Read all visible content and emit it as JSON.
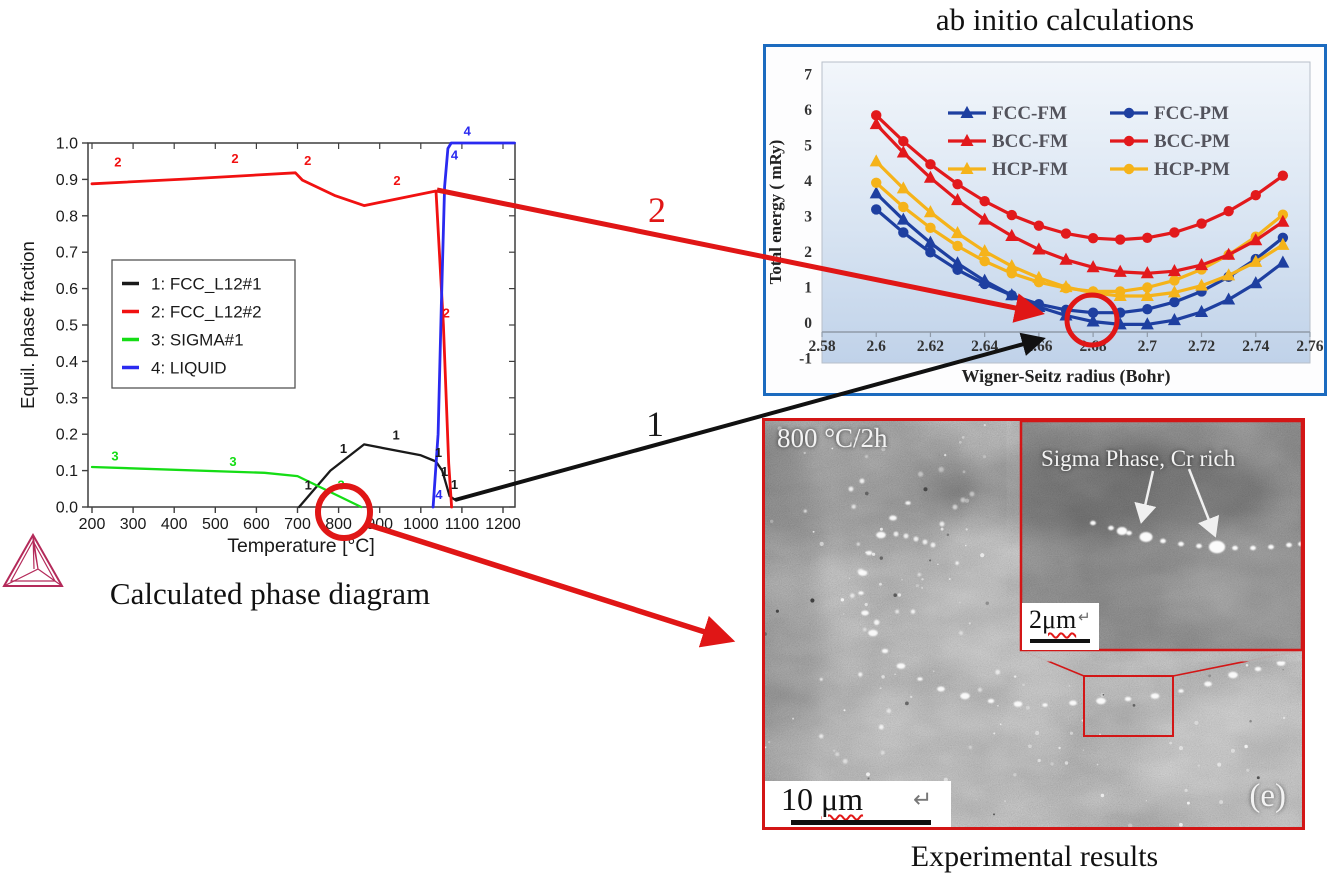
{
  "annotations": {
    "arrow1_label": "1",
    "arrow2_label": "2",
    "accent_red": "#e01616",
    "black": "#1a1a1a"
  },
  "phase_diagram": {
    "caption": "Calculated phase diagram",
    "logo_icon": "thermo-calc-tetrahedron"
  },
  "sem": {
    "caption": "Experimental results",
    "condition_label": "800 °C/2h",
    "inset_label": "Sigma Phase, Cr rich",
    "panel_label": "(e)",
    "return_symbol": "↵",
    "scalebar_main": {
      "value": "10",
      "unit": "μm"
    },
    "scalebar_inset": {
      "value": "2",
      "unit": "μm"
    },
    "border_color": "#d31616"
  },
  "chart_data": [
    {
      "id": "phase_fraction",
      "type": "line",
      "title": "Calculated phase diagram",
      "xlabel": "Temperature [°C]",
      "ylabel": "Equil. phase fraction",
      "xlim": [
        190,
        1230
      ],
      "ylim": [
        0.0,
        1.0
      ],
      "xticks": [
        200,
        300,
        400,
        500,
        600,
        700,
        800,
        900,
        1000,
        1100,
        1200
      ],
      "yticks": [
        "0.0",
        "0.1",
        "0.2",
        "0.3",
        "0.4",
        "0.5",
        "0.6",
        "0.7",
        "0.8",
        "0.9",
        "1.0"
      ],
      "grid": false,
      "legend_position": "upper-left-box",
      "series": [
        {
          "name": "1: FCC_L12#1",
          "color": "#1a1a1a",
          "w": 2.3,
          "points": [
            [
              704,
              0.0
            ],
            [
              780,
              0.1
            ],
            [
              862,
              0.172
            ],
            [
              1000,
              0.142
            ],
            [
              1037,
              0.125
            ],
            [
              1052,
              0.1
            ],
            [
              1070,
              0.03
            ],
            [
              1083,
              0.02
            ]
          ]
        },
        {
          "name": "2: FCC_L12#2",
          "color": "#f11111",
          "w": 2.8,
          "points": [
            [
              200,
              0.888
            ],
            [
              430,
              0.901
            ],
            [
              695,
              0.918
            ],
            [
              712,
              0.898
            ],
            [
              790,
              0.856
            ],
            [
              862,
              0.828
            ],
            [
              1037,
              0.868
            ],
            [
              1055,
              0.5
            ],
            [
              1068,
              0.12
            ],
            [
              1075,
              0.0
            ]
          ]
        },
        {
          "name": "3: SIGMA#1",
          "color": "#15dd15",
          "w": 2.3,
          "points": [
            [
              200,
              0.11
            ],
            [
              620,
              0.094
            ],
            [
              700,
              0.085
            ],
            [
              855,
              0.0
            ]
          ]
        },
        {
          "name": "4: LIQUID",
          "color": "#2a2af0",
          "w": 2.8,
          "points": [
            [
              1030,
              0.0
            ],
            [
              1042,
              0.2
            ],
            [
              1050,
              0.55
            ],
            [
              1058,
              0.88
            ],
            [
              1066,
              0.985
            ],
            [
              1074,
              1.0
            ],
            [
              1228,
              1.0
            ]
          ]
        }
      ],
      "curve_labels": [
        {
          "t": "2",
          "c": "#f11111",
          "x": 263,
          "y": 0.935
        },
        {
          "t": "2",
          "c": "#f11111",
          "x": 548,
          "y": 0.945
        },
        {
          "t": "2",
          "c": "#f11111",
          "x": 725,
          "y": 0.94
        },
        {
          "t": "2",
          "c": "#f11111",
          "x": 942,
          "y": 0.885
        },
        {
          "t": "2",
          "c": "#f11111",
          "x": 1062,
          "y": 0.52
        },
        {
          "t": "3",
          "c": "#15dd15",
          "x": 256,
          "y": 0.128
        },
        {
          "t": "3",
          "c": "#15dd15",
          "x": 543,
          "y": 0.112
        },
        {
          "t": "3",
          "c": "#15dd15",
          "x": 806,
          "y": 0.048
        },
        {
          "t": "1",
          "c": "#1a1a1a",
          "x": 726,
          "y": 0.048
        },
        {
          "t": "1",
          "c": "#1a1a1a",
          "x": 812,
          "y": 0.148
        },
        {
          "t": "1",
          "c": "#1a1a1a",
          "x": 940,
          "y": 0.185
        },
        {
          "t": "1",
          "c": "#1a1a1a",
          "x": 1043,
          "y": 0.138
        },
        {
          "t": "1",
          "c": "#1a1a1a",
          "x": 1058,
          "y": 0.085
        },
        {
          "t": "1",
          "c": "#1a1a1a",
          "x": 1082,
          "y": 0.05
        },
        {
          "t": "4",
          "c": "#2a2af0",
          "x": 1113,
          "y": 1.02
        },
        {
          "t": "4",
          "c": "#2a2af0",
          "x": 1082,
          "y": 0.955
        },
        {
          "t": "4",
          "c": "#2a2af0",
          "x": 1044,
          "y": 0.022
        }
      ]
    },
    {
      "id": "ab_initio_energy",
      "type": "line",
      "title": "ab initio calculations",
      "xlabel": "Wigner-Seitz radius (Bohr)",
      "ylabel": "Total energy ( mRy)",
      "xlim": [
        2.58,
        2.76
      ],
      "ylim": [
        -1,
        7
      ],
      "xtick_labels": [
        "2.58",
        "2.6",
        "2.62",
        "2.64",
        "2.66",
        "2.68",
        "2.7",
        "2.72",
        "2.74",
        "2.76"
      ],
      "xtick_values": [
        2.58,
        2.6,
        2.62,
        2.64,
        2.66,
        2.68,
        2.7,
        2.72,
        2.74,
        2.76
      ],
      "yticks": [
        -1,
        0,
        1,
        2,
        3,
        4,
        5,
        6,
        7
      ],
      "grid": false,
      "legend_position": "upper-center-2col",
      "legend_cols": [
        [
          0,
          2,
          4
        ],
        [
          1,
          3,
          5
        ]
      ],
      "draw_order": [
        0,
        1,
        4,
        5,
        2,
        3
      ],
      "x": [
        2.6,
        2.61,
        2.62,
        2.63,
        2.64,
        2.65,
        2.66,
        2.67,
        2.68,
        2.69,
        2.7,
        2.71,
        2.72,
        2.73,
        2.74,
        2.75
      ],
      "series": [
        {
          "name": "FCC-FM",
          "color": "#1e3fa0",
          "marker": "triangle",
          "values": [
            3.65,
            2.91,
            2.26,
            1.68,
            1.19,
            0.78,
            0.45,
            0.21,
            0.04,
            -0.04,
            -0.04,
            0.08,
            0.31,
            0.66,
            1.12,
            1.7
          ]
        },
        {
          "name": "FCC-PM",
          "color": "#1e3fa0",
          "marker": "circle",
          "values": [
            3.2,
            2.55,
            1.99,
            1.5,
            1.1,
            0.78,
            0.53,
            0.37,
            0.29,
            0.29,
            0.39,
            0.59,
            0.89,
            1.3,
            1.8,
            2.4
          ]
        },
        {
          "name": "BCC-FM",
          "color": "#e2191c",
          "marker": "triangle",
          "values": [
            5.6,
            4.8,
            4.09,
            3.46,
            2.91,
            2.45,
            2.07,
            1.78,
            1.57,
            1.44,
            1.4,
            1.46,
            1.63,
            1.92,
            2.33,
            2.85
          ]
        },
        {
          "name": "BCC-PM",
          "color": "#e2191c",
          "marker": "circle",
          "values": [
            5.85,
            5.12,
            4.47,
            3.91,
            3.43,
            3.04,
            2.74,
            2.52,
            2.39,
            2.35,
            2.4,
            2.55,
            2.8,
            3.15,
            3.6,
            4.15
          ]
        },
        {
          "name": "HCP-FM",
          "color": "#f5b31a",
          "marker": "triangle",
          "values": [
            4.55,
            3.79,
            3.12,
            2.53,
            2.02,
            1.6,
            1.27,
            1.01,
            0.85,
            0.76,
            0.76,
            0.86,
            1.05,
            1.34,
            1.72,
            2.2
          ]
        },
        {
          "name": "HCP-PM",
          "color": "#f5b31a",
          "marker": "circle",
          "values": [
            3.95,
            3.27,
            2.68,
            2.17,
            1.74,
            1.4,
            1.15,
            0.98,
            0.89,
            0.89,
            1.0,
            1.2,
            1.51,
            1.92,
            2.43,
            3.05
          ]
        }
      ]
    }
  ]
}
